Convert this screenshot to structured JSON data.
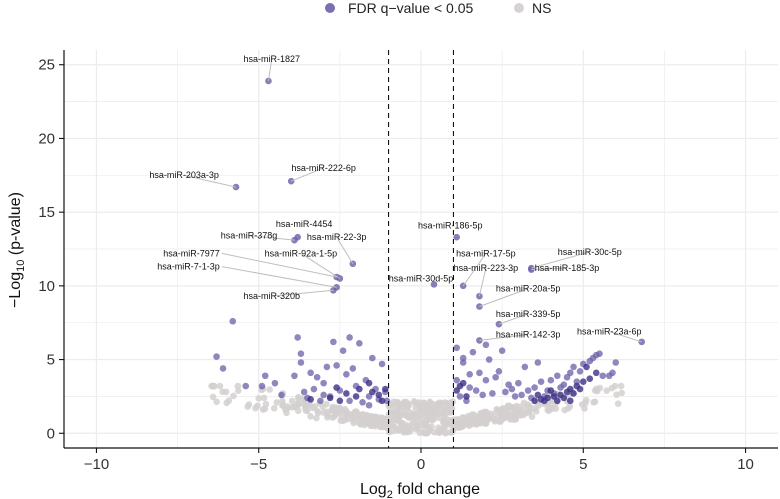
{
  "chart_data": {
    "type": "scatter",
    "title": "",
    "xlabel": "Log2 fold change",
    "ylabel": "−Log10 (p-value)",
    "xlim": [
      -11,
      11
    ],
    "ylim": [
      -1,
      26
    ],
    "xticks": [
      -10,
      -5,
      0,
      5,
      10
    ],
    "yticks": [
      0,
      5,
      10,
      15,
      20,
      25
    ],
    "thresholds": {
      "x": [
        -1,
        1
      ]
    },
    "legend": {
      "position": "top",
      "entries": [
        {
          "label": "FDR q−value < 0.05",
          "color": "#7b6fb0"
        },
        {
          "label": "NS",
          "color": "#d8d3d3"
        }
      ]
    },
    "colors": {
      "significant": "#6a5fa8",
      "significant_dark": "#3b2f86",
      "ns": "#d5d0d0"
    },
    "labeled_points": [
      {
        "name": "hsa-miR-1827",
        "x": -4.7,
        "y": 23.9
      },
      {
        "name": "hsa-miR-203a-3p",
        "x": -5.7,
        "y": 16.7
      },
      {
        "name": "hsa-miR-222-6p",
        "x": -4.0,
        "y": 17.1
      },
      {
        "name": "hsa-miR-4454",
        "x": -3.8,
        "y": 13.3
      },
      {
        "name": "hsa-miR-378g",
        "x": -3.9,
        "y": 13.1
      },
      {
        "name": "hsa-miR-22-3p",
        "x": -2.1,
        "y": 11.5
      },
      {
        "name": "hsa-miR-7977",
        "x": -2.6,
        "y": 10.6
      },
      {
        "name": "hsa-miR-92a-1-5p",
        "x": -2.5,
        "y": 10.5
      },
      {
        "name": "hsa-miR-7-1-3p",
        "x": -2.6,
        "y": 9.9
      },
      {
        "name": "hsa-miR-320b",
        "x": -2.7,
        "y": 9.7
      },
      {
        "name": "hsa-miR-186-5p",
        "x": 1.1,
        "y": 13.3
      },
      {
        "name": "hsa-miR-30d-5p",
        "x": 0.4,
        "y": 10.1
      },
      {
        "name": "hsa-miR-17-5p",
        "x": 1.3,
        "y": 10.0
      },
      {
        "name": "hsa-miR-223-3p",
        "x": 1.8,
        "y": 9.3
      },
      {
        "name": "hsa-miR-20a-5p",
        "x": 1.8,
        "y": 8.6
      },
      {
        "name": "hsa-miR-339-5p",
        "x": 2.4,
        "y": 7.4
      },
      {
        "name": "hsa-miR-30c-5p",
        "x": 3.4,
        "y": 11.2
      },
      {
        "name": "hsa-miR-185-3p",
        "x": 3.4,
        "y": 11.1
      },
      {
        "name": "hsa-miR-142-3p",
        "x": 1.8,
        "y": 6.3
      },
      {
        "name": "hsa-miR-23a-6p",
        "x": 6.8,
        "y": 6.2
      }
    ],
    "significant_points": [
      [
        -5.8,
        7.6
      ],
      [
        -6.3,
        5.2
      ],
      [
        -6.1,
        4.4
      ],
      [
        -5.4,
        3.2
      ],
      [
        -4.9,
        3.2
      ],
      [
        -4.5,
        3.4
      ],
      [
        -3.8,
        6.5
      ],
      [
        -3.7,
        5.4
      ],
      [
        -3.7,
        4.8
      ],
      [
        -3.6,
        2.8
      ],
      [
        -3.4,
        4.1
      ],
      [
        -3.3,
        3.0
      ],
      [
        -3.2,
        3.8
      ],
      [
        -3.1,
        2.2
      ],
      [
        -2.9,
        4.5
      ],
      [
        -2.8,
        2.5
      ],
      [
        -2.7,
        6.2
      ],
      [
        -2.6,
        4.6
      ],
      [
        -2.5,
        2.9
      ],
      [
        -2.4,
        5.6
      ],
      [
        -2.3,
        4.0
      ],
      [
        -2.2,
        6.5
      ],
      [
        -2.1,
        4.4
      ],
      [
        -2.0,
        3.2
      ],
      [
        -1.9,
        6.1
      ],
      [
        -1.8,
        2.1
      ],
      [
        -1.7,
        3.6
      ],
      [
        -1.6,
        2.5
      ],
      [
        -1.5,
        5.1
      ],
      [
        -1.4,
        3.0
      ],
      [
        -1.3,
        2.3
      ],
      [
        -1.2,
        4.7
      ],
      [
        -1.1,
        2.8
      ],
      [
        -1.05,
        2.2
      ],
      [
        -3.0,
        2.6
      ],
      [
        -2.2,
        2.2
      ],
      [
        -1.6,
        1.9
      ],
      [
        -4.3,
        2.6
      ],
      [
        -3.5,
        2.4
      ],
      [
        -3.9,
        3.9
      ],
      [
        -4.8,
        3.9
      ],
      [
        -3.0,
        3.4
      ],
      [
        1.1,
        5.8
      ],
      [
        1.1,
        3.6
      ],
      [
        1.2,
        2.5
      ],
      [
        1.3,
        4.8
      ],
      [
        1.4,
        2.2
      ],
      [
        1.5,
        3.1
      ],
      [
        1.6,
        5.5
      ],
      [
        1.7,
        2.9
      ],
      [
        1.8,
        4.1
      ],
      [
        1.9,
        2.6
      ],
      [
        2.0,
        3.6
      ],
      [
        2.1,
        5.0
      ],
      [
        2.2,
        2.7
      ],
      [
        2.3,
        3.8
      ],
      [
        2.4,
        4.2
      ],
      [
        2.5,
        5.6
      ],
      [
        2.6,
        2.8
      ],
      [
        2.7,
        3.3
      ],
      [
        2.8,
        3.0
      ],
      [
        2.9,
        2.5
      ],
      [
        3.0,
        3.4
      ],
      [
        3.1,
        2.6
      ],
      [
        3.2,
        4.5
      ],
      [
        3.3,
        2.9
      ],
      [
        3.4,
        2.4
      ],
      [
        3.5,
        3.1
      ],
      [
        3.6,
        4.8
      ],
      [
        3.7,
        3.5
      ],
      [
        3.8,
        2.5
      ],
      [
        3.9,
        2.9
      ],
      [
        4.0,
        3.6
      ],
      [
        4.1,
        2.7
      ],
      [
        4.2,
        3.9
      ],
      [
        4.3,
        3.1
      ],
      [
        4.4,
        3.3
      ],
      [
        4.5,
        3.8
      ],
      [
        4.6,
        4.1
      ],
      [
        4.7,
        4.5
      ],
      [
        4.8,
        3.5
      ],
      [
        4.9,
        4.2
      ],
      [
        5.0,
        4.7
      ],
      [
        5.2,
        4.9
      ],
      [
        5.3,
        5.1
      ],
      [
        5.4,
        5.3
      ],
      [
        5.5,
        5.4
      ],
      [
        5.6,
        3.9
      ],
      [
        5.8,
        3.9
      ],
      [
        5.9,
        4.1
      ],
      [
        6.0,
        4.8
      ],
      [
        1.3,
        5.1
      ],
      [
        2.0,
        6.0
      ],
      [
        1.5,
        4.0
      ]
    ],
    "significant_dark_points": [
      [
        -2.6,
        3.1
      ],
      [
        -2.3,
        2.7
      ],
      [
        -2.0,
        2.5
      ],
      [
        -1.9,
        3.0
      ],
      [
        -1.3,
        2.6
      ],
      [
        -1.2,
        2.2
      ],
      [
        -3.4,
        2.3
      ],
      [
        -1.6,
        3.4
      ],
      [
        -1.1,
        3.0
      ],
      [
        -2.8,
        2.4
      ],
      [
        -1.5,
        2.8
      ],
      [
        -2.5,
        2.2
      ],
      [
        1.1,
        2.9
      ],
      [
        1.2,
        3.2
      ],
      [
        1.3,
        3.4
      ],
      [
        1.4,
        2.5
      ],
      [
        3.5,
        2.2
      ],
      [
        3.7,
        2.3
      ],
      [
        3.9,
        2.4
      ],
      [
        4.1,
        2.5
      ],
      [
        4.3,
        2.6
      ],
      [
        4.5,
        2.8
      ],
      [
        4.6,
        3.0
      ],
      [
        4.8,
        3.2
      ],
      [
        5.0,
        3.5
      ],
      [
        5.2,
        3.7
      ],
      [
        5.4,
        4.1
      ],
      [
        5.1,
        4.5
      ],
      [
        3.6,
        2.6
      ],
      [
        4.0,
        2.9
      ],
      [
        4.2,
        2.2
      ],
      [
        4.4,
        2.4
      ],
      [
        4.7,
        2.7
      ],
      [
        4.9,
        3.0
      ],
      [
        3.8,
        2.2
      ],
      [
        4.6,
        2.2
      ]
    ]
  }
}
